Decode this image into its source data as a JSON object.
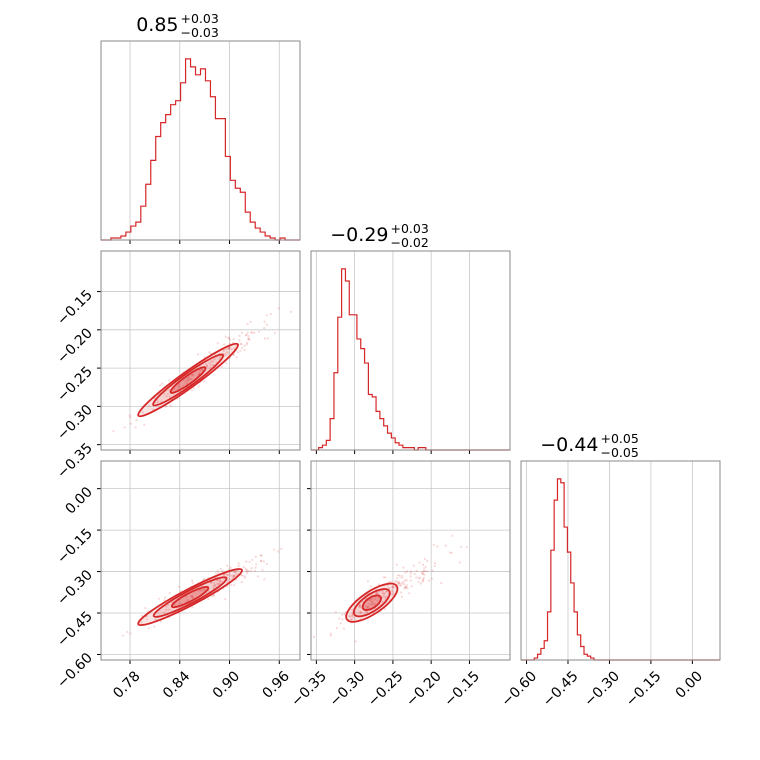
{
  "chart_data": {
    "type": "corner",
    "color": "#d62728",
    "parameters": [
      {
        "title": {
          "median": "0.85",
          "plus": "+0.03",
          "minus": "−0.03"
        },
        "range": [
          0.745,
          0.985
        ],
        "ticks": [
          {
            "v": 0.78,
            "label": "0.78"
          },
          {
            "v": 0.84,
            "label": "0.84"
          },
          {
            "v": 0.9,
            "label": "0.90"
          },
          {
            "v": 0.96,
            "label": "0.96"
          }
        ],
        "hist": {
          "start": 0.745,
          "step": 0.006,
          "counts": [
            0,
            0,
            1,
            1,
            2,
            4,
            7,
            9,
            17,
            28,
            40,
            52,
            59,
            63,
            68,
            70,
            79,
            91,
            87,
            83,
            86,
            80,
            72,
            61,
            61,
            42,
            30,
            26,
            24,
            14,
            9,
            6,
            4,
            2,
            1,
            0,
            1,
            0,
            0,
            0
          ]
        }
      },
      {
        "title": {
          "median": "−0.29",
          "plus": "+0.03",
          "minus": "−0.02"
        },
        "range": [
          -0.357,
          -0.097
        ],
        "ticks": [
          {
            "v": -0.35,
            "label": "−0.35"
          },
          {
            "v": -0.3,
            "label": "−0.30"
          },
          {
            "v": -0.25,
            "label": "−0.25"
          },
          {
            "v": -0.2,
            "label": "−0.20"
          },
          {
            "v": -0.15,
            "label": "−0.15"
          }
        ],
        "hist": {
          "start": -0.357,
          "step": 0.005,
          "counts": [
            0,
            0,
            1,
            2,
            4,
            13,
            32,
            55,
            75,
            70,
            56,
            56,
            46,
            42,
            36,
            23,
            22,
            16,
            13,
            10,
            7,
            5,
            3,
            2,
            1,
            1,
            1,
            0,
            1,
            1,
            0,
            0,
            0,
            0,
            0,
            0,
            0,
            0,
            0,
            0,
            0,
            0,
            0,
            0,
            0,
            0,
            0,
            0,
            0,
            0,
            0,
            0
          ]
        }
      },
      {
        "title": {
          "median": "−0.44",
          "plus": "+0.05",
          "minus": "−0.05"
        },
        "range": [
          -0.62,
          0.1
        ],
        "ticks": [
          {
            "v": -0.6,
            "label": "−0.60"
          },
          {
            "v": -0.45,
            "label": "−0.45"
          },
          {
            "v": -0.3,
            "label": "−0.30"
          },
          {
            "v": -0.15,
            "label": "−0.15"
          },
          {
            "v": 0.0,
            "label": "0.00"
          }
        ],
        "hist": {
          "start": -0.62,
          "step": 0.012,
          "counts": [
            0,
            0,
            0,
            0,
            1,
            3,
            6,
            10,
            25,
            57,
            83,
            94,
            92,
            69,
            56,
            40,
            25,
            13,
            7,
            3,
            2,
            1,
            0,
            0,
            0,
            0,
            0,
            0,
            0,
            0,
            0,
            0,
            0,
            0,
            0,
            0,
            0,
            0,
            0,
            0,
            0,
            0,
            0,
            0,
            0,
            0,
            0,
            0,
            0,
            0,
            0,
            0,
            0,
            0,
            0,
            0,
            0,
            0,
            0,
            0
          ]
        }
      }
    ],
    "pairs": [
      {
        "x_param": 0,
        "y_param": 1,
        "axis": [
          0.79,
          0.91
        ],
        "spread": {
          "along": 0.02,
          "perp": 0.004
        },
        "scatter_band": {
          "x": [
            0.78,
            0.96
          ]
        },
        "contour_levels": [
          0.35,
          0.7,
          1.0
        ]
      },
      {
        "x_param": 0,
        "y_param": 2,
        "axis": [
          0.79,
          0.915
        ],
        "spread": {
          "along": 0.022,
          "perp": 0.004
        },
        "scatter_band": {
          "x": [
            0.765,
            0.975
          ]
        },
        "contour_levels": [
          0.35,
          0.7,
          1.0
        ]
      },
      {
        "x_param": 1,
        "y_param": 2,
        "axis": [
          -0.31,
          -0.245
        ],
        "spread": {
          "along": 0.02,
          "perp": 0.008
        },
        "scatter_band": {
          "x": [
            -0.34,
            -0.18
          ]
        },
        "contour_levels": [
          0.35,
          0.7,
          1.0
        ]
      }
    ]
  }
}
